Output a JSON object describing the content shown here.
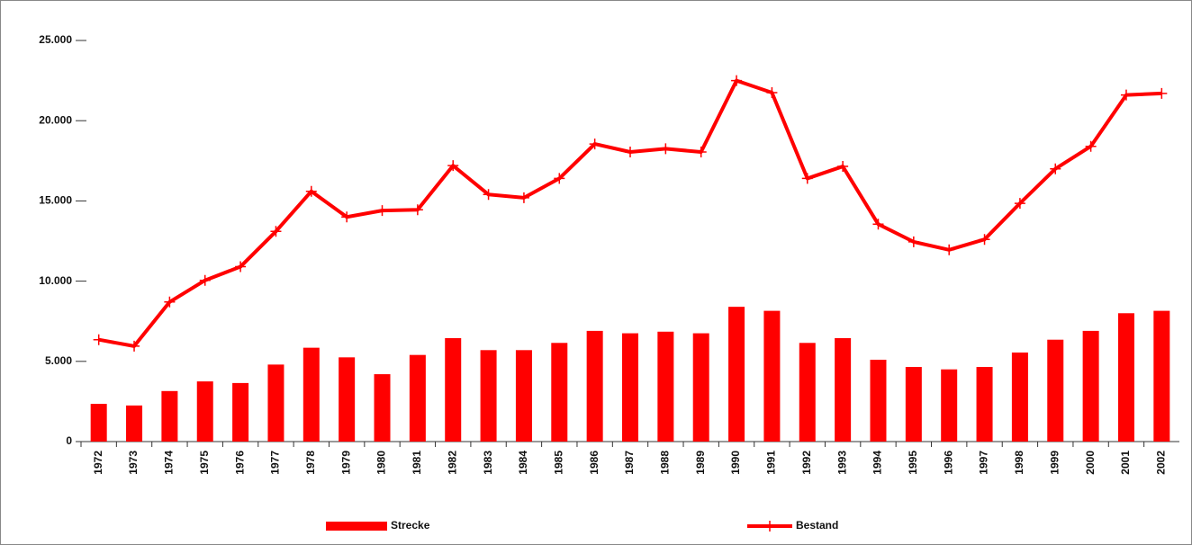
{
  "chart_data": {
    "type": "combo",
    "categories": [
      "1972",
      "1973",
      "1974",
      "1975",
      "1976",
      "1977",
      "1978",
      "1979",
      "1980",
      "1981",
      "1982",
      "1983",
      "1984",
      "1985",
      "1986",
      "1987",
      "1988",
      "1989",
      "1990",
      "1991",
      "1992",
      "1993",
      "1994",
      "1995",
      "1996",
      "1997",
      "1998",
      "1999",
      "2000",
      "2001",
      "2002"
    ],
    "series": [
      {
        "name": "Strecke",
        "type": "bar",
        "color": "#ff0000",
        "values": [
          2350,
          2250,
          3150,
          3750,
          3650,
          4800,
          5850,
          5250,
          4200,
          5400,
          6450,
          5700,
          5700,
          6150,
          6900,
          6750,
          6850,
          6750,
          8400,
          8150,
          6150,
          6450,
          5100,
          4650,
          4500,
          4650,
          5550,
          6350,
          6900,
          8000,
          8150
        ]
      },
      {
        "name": "Bestand",
        "type": "line",
        "color": "#ff0000",
        "values": [
          6350,
          5950,
          8700,
          10050,
          10900,
          13100,
          15600,
          14000,
          14400,
          14450,
          17200,
          15400,
          15200,
          16400,
          18550,
          18050,
          18250,
          18050,
          22500,
          21750,
          16400,
          17150,
          13550,
          12450,
          11950,
          12600,
          14850,
          17000,
          18400,
          21600,
          21700
        ]
      }
    ],
    "ylim": [
      0,
      25000
    ],
    "yticks": [
      0,
      {
        "value": 5000,
        "label": "5.000"
      },
      {
        "value": 10000,
        "label": "10.000"
      },
      {
        "value": 15000,
        "label": "15.000"
      },
      {
        "value": 20000,
        "label": "20.000"
      },
      {
        "value": 25000,
        "label": "25.000"
      }
    ],
    "grid": false,
    "legend": "bottom"
  }
}
